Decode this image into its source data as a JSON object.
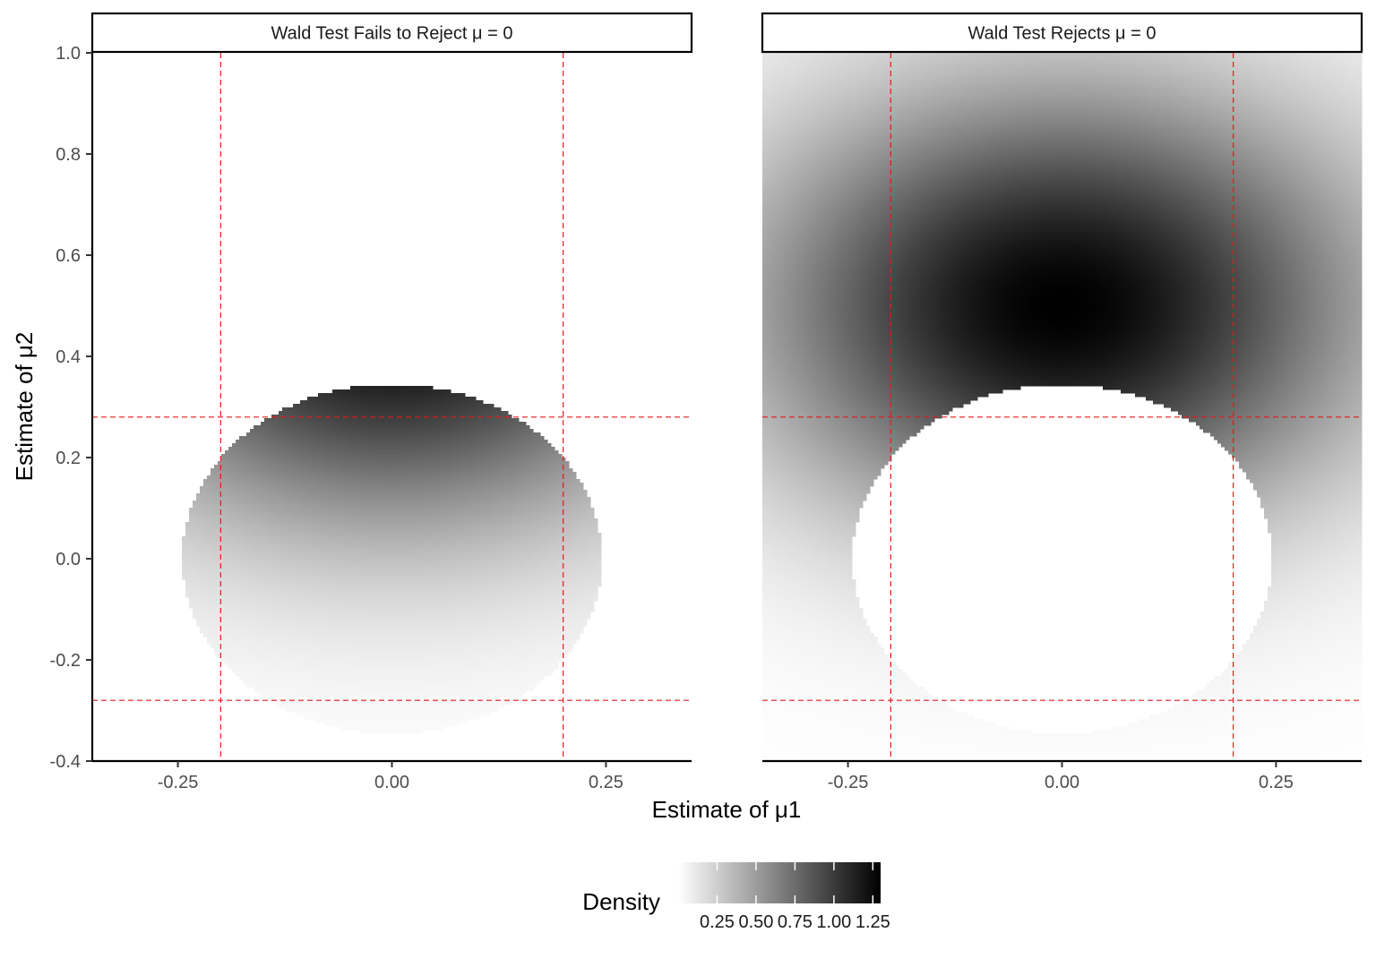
{
  "chart_data": {
    "type": "heatmap",
    "title": "",
    "xlabel": "Estimate of μ1",
    "ylabel": "Estimate of μ2",
    "xlim": [
      -0.35,
      0.35
    ],
    "ylim": [
      -0.4,
      1.0
    ],
    "x_ticks": [
      -0.25,
      0.0,
      0.25
    ],
    "x_tick_labels": [
      "-0.25",
      "0.00",
      "0.25"
    ],
    "y_ticks": [
      -0.4,
      -0.2,
      0.0,
      0.2,
      0.4,
      0.6,
      0.8,
      1.0
    ],
    "y_tick_labels": [
      "-0.4",
      "-0.2",
      "0.0",
      "0.2",
      "0.4",
      "0.6",
      "0.8",
      "1.0"
    ],
    "grid": false,
    "facets": [
      {
        "label": "Wald Test Fails to Reject μ = 0",
        "region": "inside"
      },
      {
        "label": "Wald Test Rejects μ = 0",
        "region": "outside"
      }
    ],
    "acceptance_ellipse": {
      "center": [
        0.0,
        0.0
      ],
      "semi_axis_mu1": 0.245,
      "semi_axis_mu2": 0.345
    },
    "density": {
      "mean": [
        0.0,
        0.5
      ],
      "sd": [
        0.25,
        0.3
      ],
      "max": 1.3
    },
    "reference_lines": {
      "color": "#e41a1c",
      "style": "dashed",
      "vertical": [
        -0.2,
        0.2
      ],
      "horizontal": [
        -0.28,
        0.28
      ]
    },
    "legend": {
      "title": "Density",
      "position": "bottom",
      "breaks": [
        0.25,
        0.5,
        0.75,
        1.0,
        1.25
      ],
      "break_labels": [
        "0.25",
        "0.50",
        "0.75",
        "1.00",
        "1.25"
      ],
      "range": [
        0.0,
        1.3
      ],
      "low_color": "#ffffff",
      "high_color": "#000000"
    }
  }
}
